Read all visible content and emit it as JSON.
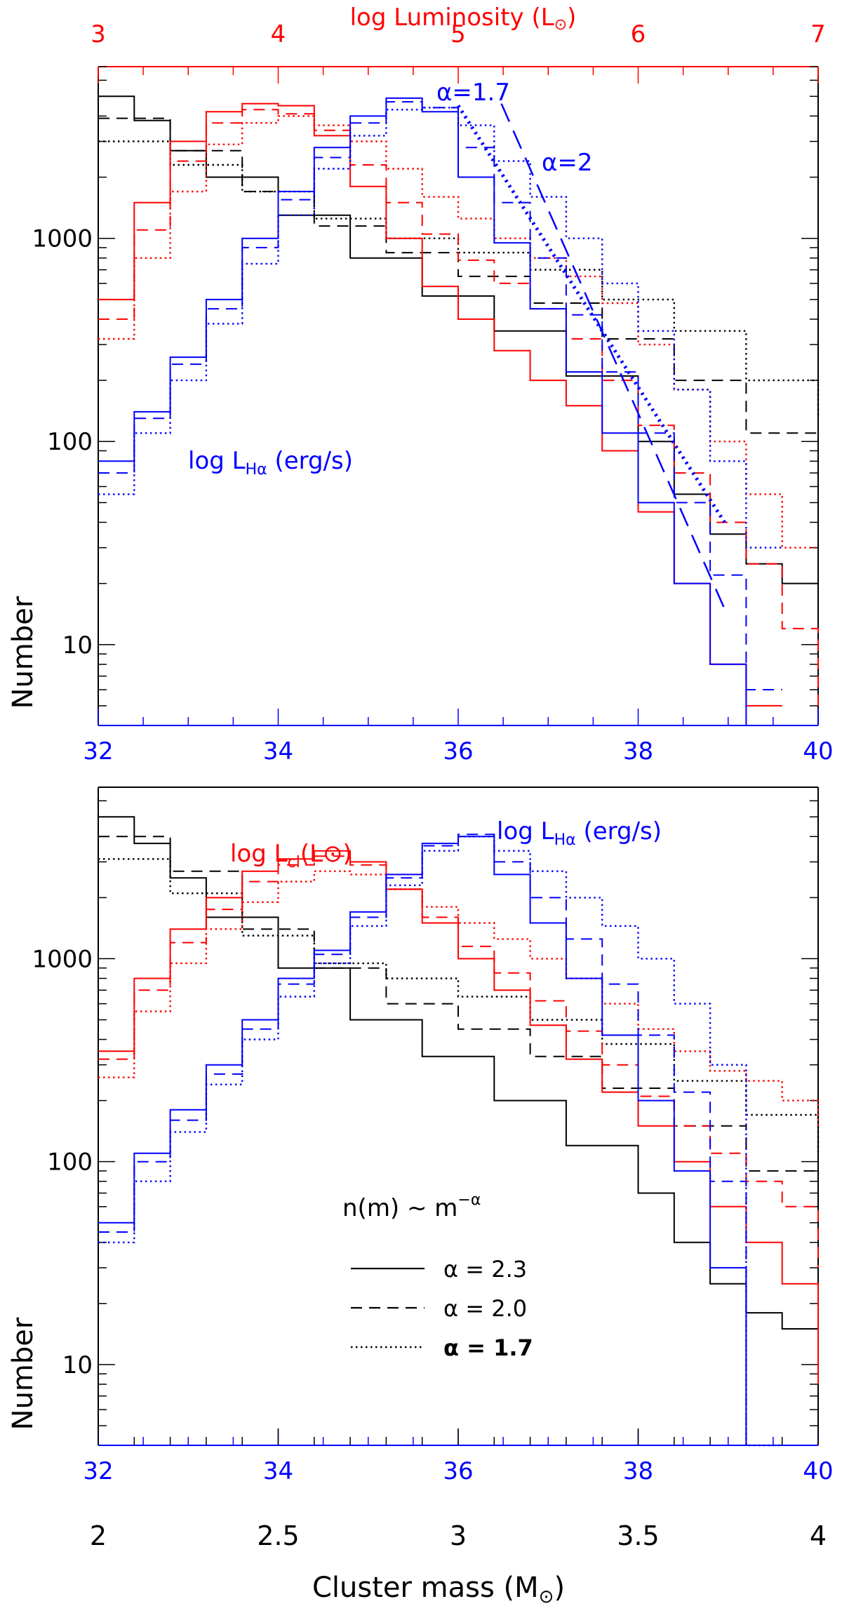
{
  "colors": {
    "black": "#000000",
    "red": "#ff0000",
    "blue": "#0000ff"
  },
  "chart_data": [
    {
      "type": "line",
      "panel": "top",
      "step": true,
      "log_y": true,
      "ylabel": "Number",
      "ylim": [
        4,
        7000
      ],
      "yticks": [
        {
          "value": 10,
          "label": "10"
        },
        {
          "value": 100,
          "label": "100"
        },
        {
          "value": 1000,
          "label": "1000"
        }
      ],
      "xlim": [
        2,
        4
      ],
      "top_axis": {
        "label": "log Luminosity (L",
        "label_sub": "⊙",
        "label_end": ")",
        "range": [
          3,
          7
        ],
        "ticks": [
          "3",
          "4",
          "5",
          "6",
          "7"
        ]
      },
      "inner_axis": {
        "range": [
          32,
          40
        ],
        "ticks": [
          "32",
          "34",
          "36",
          "38",
          "40"
        ]
      },
      "inset_label": {
        "main": "log L",
        "sub": "Hα",
        "rest": " (erg/s)"
      },
      "fit_lines": [
        {
          "label": "α=1.7",
          "style": "dotted",
          "x": [
            3.0,
            3.74
          ],
          "y": [
            4500,
            40
          ]
        },
        {
          "label": "α=2",
          "style": "dashed",
          "x": [
            3.12,
            3.74
          ],
          "y": [
            4600,
            15
          ]
        }
      ],
      "series": [
        {
          "name": "mass α=2.3",
          "color": "black",
          "style": "solid",
          "x": [
            2.0,
            2.1,
            2.2,
            2.3,
            2.5,
            2.7,
            2.9,
            3.1,
            3.3,
            3.5,
            3.6,
            3.7,
            3.8,
            3.9,
            4.0
          ],
          "values": [
            5000,
            3800,
            2700,
            2000,
            1300,
            800,
            520,
            350,
            210,
            100,
            55,
            35,
            25,
            20,
            15
          ]
        },
        {
          "name": "mass α=2.0",
          "color": "black",
          "style": "dashed",
          "x": [
            2.0,
            2.2,
            2.4,
            2.6,
            2.8,
            3.0,
            3.2,
            3.4,
            3.6,
            3.8,
            4.0
          ],
          "values": [
            3900,
            2700,
            1700,
            1150,
            850,
            650,
            480,
            320,
            200,
            110,
            55
          ]
        },
        {
          "name": "mass α=1.7",
          "color": "black",
          "style": "dotted",
          "x": [
            2.0,
            2.2,
            2.4,
            2.6,
            2.8,
            3.0,
            3.2,
            3.4,
            3.6,
            3.8,
            4.0
          ],
          "values": [
            3000,
            2300,
            1700,
            1250,
            1000,
            850,
            700,
            500,
            350,
            200,
            130
          ]
        },
        {
          "name": "lum α=2.3",
          "color": "red",
          "style": "solid",
          "x": [
            2.0,
            2.1,
            2.2,
            2.3,
            2.4,
            2.5,
            2.6,
            2.7,
            2.8,
            2.9,
            3.0,
            3.1,
            3.2,
            3.3,
            3.4,
            3.5,
            3.6,
            3.7,
            3.8
          ],
          "values": [
            500,
            1500,
            3000,
            4200,
            4600,
            4500,
            3200,
            1800,
            1000,
            580,
            400,
            280,
            200,
            150,
            90,
            45,
            20,
            8,
            5
          ]
        },
        {
          "name": "lum α=2.0",
          "color": "red",
          "style": "dashed",
          "x": [
            2.0,
            2.1,
            2.2,
            2.3,
            2.4,
            2.5,
            2.6,
            2.7,
            2.8,
            2.9,
            3.0,
            3.1,
            3.2,
            3.3,
            3.4,
            3.5,
            3.6,
            3.7,
            3.8,
            3.9,
            4.0
          ],
          "values": [
            400,
            1100,
            2400,
            3700,
            4300,
            4100,
            3400,
            2300,
            1500,
            1050,
            780,
            600,
            450,
            320,
            200,
            120,
            70,
            40,
            25,
            12,
            5
          ]
        },
        {
          "name": "lum α=1.7",
          "color": "red",
          "style": "dotted",
          "x": [
            2.0,
            2.1,
            2.2,
            2.3,
            2.4,
            2.5,
            2.6,
            2.7,
            2.8,
            2.9,
            3.0,
            3.1,
            3.2,
            3.3,
            3.4,
            3.5,
            3.6,
            3.7,
            3.8,
            3.9
          ],
          "values": [
            320,
            800,
            1700,
            2900,
            3700,
            4000,
            3600,
            3000,
            2200,
            1600,
            1250,
            1000,
            800,
            650,
            480,
            300,
            180,
            100,
            55,
            30
          ]
        },
        {
          "name": "Hα α=2.3",
          "color": "blue",
          "style": "solid",
          "x": [
            2.0,
            2.1,
            2.2,
            2.3,
            2.4,
            2.5,
            2.6,
            2.7,
            2.8,
            2.9,
            3.0,
            3.1,
            3.2,
            3.3,
            3.4,
            3.5,
            3.6,
            3.7,
            3.8
          ],
          "values": [
            80,
            140,
            260,
            500,
            1000,
            1700,
            2800,
            4000,
            4900,
            4200,
            2000,
            950,
            450,
            220,
            110,
            50,
            20,
            8,
            4
          ]
        },
        {
          "name": "Hα α=2.0",
          "color": "blue",
          "style": "dashed",
          "x": [
            2.0,
            2.1,
            2.2,
            2.3,
            2.4,
            2.5,
            2.6,
            2.7,
            2.8,
            2.9,
            3.0,
            3.1,
            3.2,
            3.3,
            3.4,
            3.5,
            3.6,
            3.7,
            3.8
          ],
          "values": [
            70,
            130,
            240,
            450,
            900,
            1550,
            2500,
            3700,
            4700,
            4400,
            2800,
            1500,
            800,
            420,
            220,
            110,
            50,
            22,
            6
          ]
        },
        {
          "name": "Hα α=1.7",
          "color": "blue",
          "style": "dotted",
          "x": [
            2.0,
            2.1,
            2.2,
            2.3,
            2.4,
            2.5,
            2.6,
            2.7,
            2.8,
            2.9,
            3.0,
            3.1,
            3.2,
            3.3,
            3.4,
            3.5,
            3.6,
            3.7,
            3.8
          ],
          "values": [
            55,
            110,
            200,
            380,
            750,
            1300,
            2200,
            3200,
            4300,
            4400,
            3600,
            2400,
            1600,
            1000,
            600,
            350,
            180,
            80,
            30
          ]
        }
      ]
    },
    {
      "type": "line",
      "panel": "bottom",
      "step": true,
      "log_y": true,
      "ylabel": "Number",
      "xlabel": "Cluster mass (M",
      "xlabel_sub": "⊙",
      "xlabel_end": ")",
      "ylim": [
        4,
        7000
      ],
      "yticks": [
        {
          "value": 10,
          "label": "10"
        },
        {
          "value": 100,
          "label": "100"
        },
        {
          "value": 1000,
          "label": "1000"
        }
      ],
      "xlim": [
        2,
        4
      ],
      "xticks": [
        "2",
        "2.5",
        "3",
        "3.5",
        "4"
      ],
      "inner_axis": {
        "range": [
          32,
          40
        ],
        "ticks": [
          "32",
          "34",
          "36",
          "38",
          "40"
        ]
      },
      "inset_labels": [
        {
          "main": "log L",
          "sub": "cl",
          "rest": "(L⊙)",
          "color": "red"
        },
        {
          "main": "log L",
          "sub": "Hα",
          "rest": " (erg/s)",
          "color": "blue"
        }
      ],
      "legend": {
        "title": "n(m) ~ m",
        "title_sup": "−α",
        "position": "lower-center",
        "entries": [
          {
            "label": "α = 2.3",
            "style": "solid"
          },
          {
            "label": "α = 2.0",
            "style": "dashed"
          },
          {
            "label": "α = 1.7",
            "style": "dotted"
          }
        ]
      },
      "series": [
        {
          "name": "mass α=2.3",
          "color": "black",
          "style": "solid",
          "x": [
            2.0,
            2.1,
            2.2,
            2.3,
            2.5,
            2.7,
            2.9,
            3.1,
            3.3,
            3.5,
            3.6,
            3.7,
            3.8,
            3.9,
            4.0
          ],
          "values": [
            5000,
            3700,
            2500,
            1600,
            900,
            500,
            330,
            200,
            120,
            70,
            40,
            25,
            18,
            15,
            10
          ]
        },
        {
          "name": "mass α=2.0",
          "color": "black",
          "style": "dashed",
          "x": [
            2.0,
            2.2,
            2.4,
            2.6,
            2.8,
            3.0,
            3.2,
            3.4,
            3.6,
            3.8,
            4.0
          ],
          "values": [
            4000,
            2700,
            1400,
            900,
            600,
            450,
            330,
            230,
            150,
            90,
            40
          ]
        },
        {
          "name": "mass α=1.7",
          "color": "black",
          "style": "dotted",
          "x": [
            2.0,
            2.2,
            2.4,
            2.6,
            2.8,
            3.0,
            3.2,
            3.4,
            3.6,
            3.8,
            4.0
          ],
          "values": [
            3100,
            2100,
            1300,
            950,
            800,
            650,
            500,
            380,
            250,
            170,
            110
          ]
        },
        {
          "name": "lum α=2.3",
          "color": "red",
          "style": "solid",
          "x": [
            2.0,
            2.1,
            2.2,
            2.3,
            2.4,
            2.5,
            2.6,
            2.7,
            2.8,
            2.9,
            3.0,
            3.1,
            3.2,
            3.3,
            3.4,
            3.5,
            3.6,
            3.7,
            3.8,
            3.9,
            4.0
          ],
          "values": [
            350,
            800,
            1400,
            2000,
            2700,
            3100,
            3400,
            3000,
            2200,
            1500,
            1000,
            700,
            470,
            320,
            220,
            150,
            100,
            60,
            40,
            25,
            8
          ]
        },
        {
          "name": "lum α=2.0",
          "color": "red",
          "style": "dashed",
          "x": [
            2.0,
            2.1,
            2.2,
            2.3,
            2.4,
            2.5,
            2.6,
            2.7,
            2.8,
            2.9,
            3.0,
            3.1,
            3.2,
            3.3,
            3.4,
            3.5,
            3.6,
            3.7,
            3.8,
            3.9,
            4.0
          ],
          "values": [
            320,
            700,
            1200,
            1750,
            2400,
            2900,
            3200,
            2900,
            2200,
            1600,
            1150,
            850,
            620,
            440,
            300,
            210,
            150,
            110,
            80,
            60,
            30
          ]
        },
        {
          "name": "lum α=1.7",
          "color": "red",
          "style": "dotted",
          "x": [
            2.0,
            2.1,
            2.2,
            2.3,
            2.4,
            2.5,
            2.6,
            2.7,
            2.8,
            2.9,
            3.0,
            3.1,
            3.2,
            3.3,
            3.4,
            3.5,
            3.6,
            3.7,
            3.8,
            3.9,
            4.0
          ],
          "values": [
            260,
            550,
            950,
            1400,
            1900,
            2400,
            2700,
            2600,
            2200,
            1800,
            1500,
            1250,
            1000,
            800,
            600,
            450,
            350,
            280,
            250,
            200,
            150
          ]
        },
        {
          "name": "Hα α=2.3",
          "color": "blue",
          "style": "solid",
          "x": [
            2.0,
            2.1,
            2.2,
            2.3,
            2.4,
            2.5,
            2.6,
            2.7,
            2.8,
            2.9,
            3.0,
            3.1,
            3.2,
            3.3,
            3.4,
            3.5,
            3.6,
            3.7,
            3.8
          ],
          "values": [
            50,
            110,
            180,
            300,
            500,
            800,
            1100,
            1700,
            2600,
            3700,
            4000,
            2600,
            1500,
            800,
            420,
            200,
            90,
            30,
            4
          ]
        },
        {
          "name": "Hα α=2.0",
          "color": "blue",
          "style": "dashed",
          "x": [
            2.0,
            2.1,
            2.2,
            2.3,
            2.4,
            2.5,
            2.6,
            2.7,
            2.8,
            2.9,
            3.0,
            3.1,
            3.2,
            3.3,
            3.4,
            3.5,
            3.6,
            3.7,
            3.8
          ],
          "values": [
            45,
            100,
            160,
            270,
            450,
            750,
            1050,
            1600,
            2500,
            3600,
            4100,
            3000,
            2000,
            1250,
            750,
            420,
            220,
            80,
            4
          ]
        },
        {
          "name": "Hα α=1.7",
          "color": "blue",
          "style": "dotted",
          "x": [
            2.0,
            2.1,
            2.2,
            2.3,
            2.4,
            2.5,
            2.6,
            2.7,
            2.8,
            2.9,
            3.0,
            3.1,
            3.2,
            3.3,
            3.4,
            3.5,
            3.6,
            3.7,
            3.8
          ],
          "values": [
            40,
            80,
            140,
            240,
            400,
            650,
            950,
            1450,
            2300,
            3400,
            4000,
            3400,
            2700,
            2000,
            1450,
            1000,
            600,
            300,
            4
          ]
        }
      ]
    }
  ]
}
